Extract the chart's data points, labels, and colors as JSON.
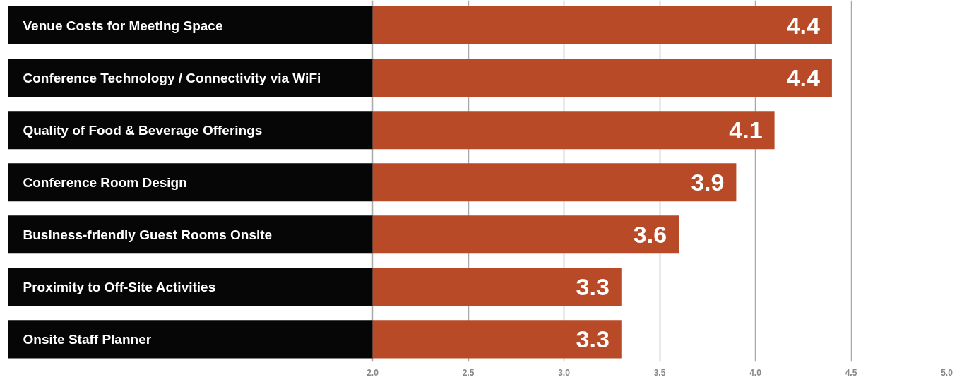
{
  "chart_data": {
    "type": "bar",
    "orientation": "horizontal",
    "categories": [
      "Venue Costs for Meeting Space",
      "Conference Technology / Connectivity via WiFi",
      "Quality of Food & Beverage Offerings",
      "Conference Room Design",
      "Business-friendly Guest Rooms Onsite",
      "Proximity to Off-Site Activities",
      "Onsite Staff Planner"
    ],
    "values": [
      4.4,
      4.4,
      4.1,
      3.9,
      3.6,
      3.3,
      3.3
    ],
    "color": "#b94a28",
    "xlim": [
      2,
      5
    ],
    "xticks": [
      {
        "value": 2,
        "label": "2.0"
      },
      {
        "value": 2.5,
        "label": "2.5"
      },
      {
        "value": 3,
        "label": "3.0"
      },
      {
        "value": 3.5,
        "label": "3.5"
      },
      {
        "value": 4,
        "label": "4.0"
      },
      {
        "value": 4.5,
        "label": "4.5"
      },
      {
        "value": 5,
        "label": "5.0"
      }
    ],
    "grid": "x",
    "data_labels": true
  }
}
